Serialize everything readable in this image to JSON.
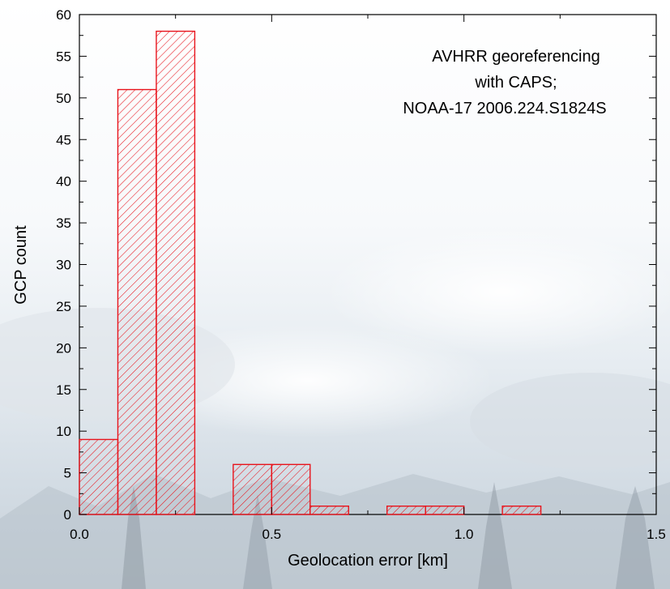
{
  "chart_data": {
    "type": "bar",
    "subtype": "histogram",
    "bin_edges": [
      0.0,
      0.1,
      0.2,
      0.3,
      0.4,
      0.5,
      0.6,
      0.7,
      0.8,
      0.9,
      1.0,
      1.1,
      1.2
    ],
    "values": [
      9,
      51,
      58,
      0,
      6,
      6,
      1,
      0,
      1,
      1,
      0,
      1
    ],
    "xlabel": "Geolocation error [km]",
    "ylabel": "GCP count",
    "xlim": [
      0.0,
      1.5
    ],
    "ylim": [
      0,
      60
    ],
    "x_ticks": [
      "0.0",
      "0.5",
      "1.0",
      "1.5"
    ],
    "y_ticks": [
      "0",
      "5",
      "10",
      "15",
      "20",
      "25",
      "30",
      "35",
      "40",
      "45",
      "50",
      "55",
      "60"
    ],
    "annotation": [
      "AVHRR georeferencing",
      "with CAPS;",
      "NOAA-17 2006.224.S1824S"
    ],
    "bar_fill": "hatched",
    "bar_color": "#e8141c",
    "grid": false,
    "legend": "none",
    "background": "photo of clouds and trees"
  }
}
